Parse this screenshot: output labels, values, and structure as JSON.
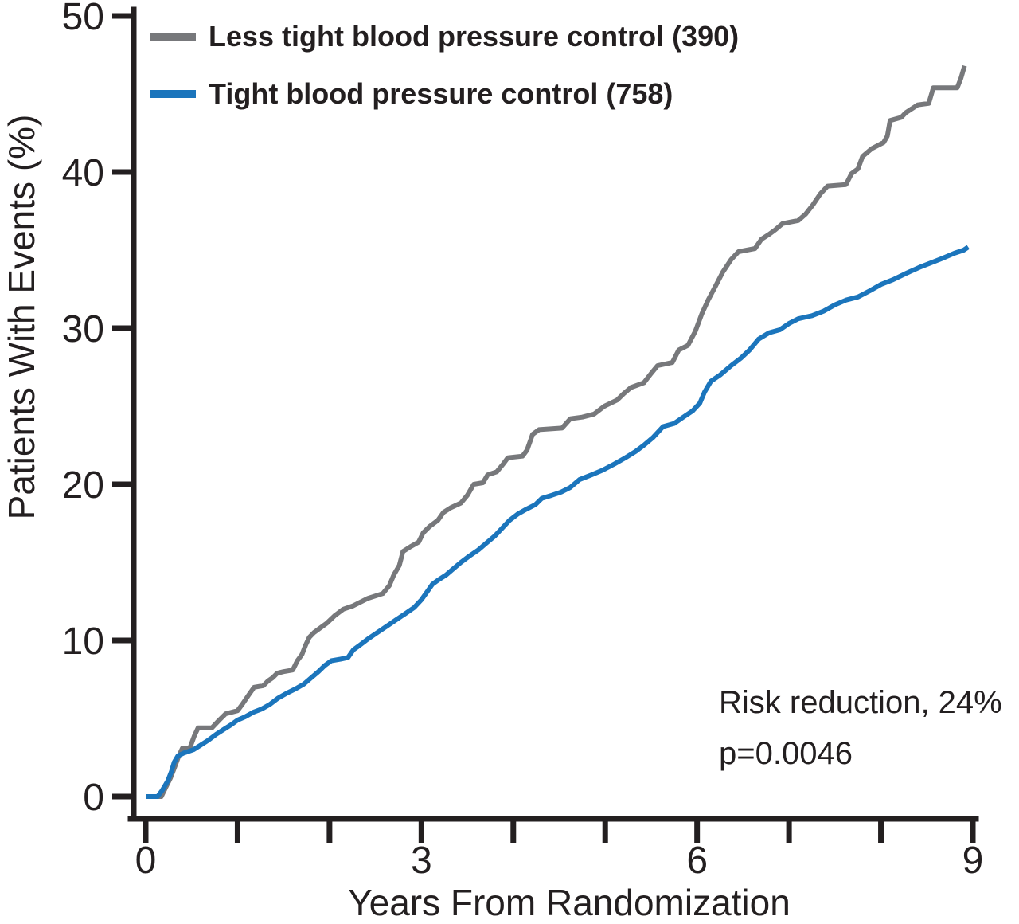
{
  "chart_data": {
    "type": "line",
    "title": "",
    "xlabel": "Years From Randomization",
    "ylabel": "Patients With Events (%)",
    "xlim": [
      0,
      9
    ],
    "ylim": [
      0,
      50
    ],
    "grid": false,
    "legend_position": "top-left",
    "axis_color": "#231F20",
    "x_ticks": [
      0,
      1,
      2,
      3,
      4,
      5,
      6,
      7,
      8,
      9
    ],
    "x_labeled_ticks": [
      0,
      3,
      6,
      9
    ],
    "y_ticks": [
      0,
      10,
      20,
      30,
      40,
      50
    ],
    "annotations": [
      "Risk reduction, 24%",
      "p=0.0046"
    ],
    "series": [
      {
        "id": "less-tight",
        "name": "Less tight blood pressure control (390)",
        "color": "#77787B",
        "points": [
          [
            0.0,
            0
          ],
          [
            0.17,
            0
          ],
          [
            0.22,
            0.6
          ],
          [
            0.27,
            1.2
          ],
          [
            0.31,
            1.8
          ],
          [
            0.36,
            2.6
          ],
          [
            0.4,
            3.1
          ],
          [
            0.48,
            3.1
          ],
          [
            0.53,
            3.9
          ],
          [
            0.57,
            4.4
          ],
          [
            0.72,
            4.4
          ],
          [
            0.8,
            4.9
          ],
          [
            0.87,
            5.3
          ],
          [
            1.0,
            5.5
          ],
          [
            1.05,
            5.9
          ],
          [
            1.12,
            6.5
          ],
          [
            1.18,
            7.0
          ],
          [
            1.28,
            7.1
          ],
          [
            1.33,
            7.4
          ],
          [
            1.38,
            7.6
          ],
          [
            1.43,
            7.9
          ],
          [
            1.5,
            8.0
          ],
          [
            1.6,
            8.1
          ],
          [
            1.65,
            8.7
          ],
          [
            1.7,
            9.1
          ],
          [
            1.74,
            9.7
          ],
          [
            1.78,
            10.2
          ],
          [
            1.83,
            10.5
          ],
          [
            1.9,
            10.8
          ],
          [
            1.97,
            11.1
          ],
          [
            2.06,
            11.6
          ],
          [
            2.15,
            12.0
          ],
          [
            2.25,
            12.2
          ],
          [
            2.42,
            12.7
          ],
          [
            2.58,
            13.0
          ],
          [
            2.65,
            13.5
          ],
          [
            2.7,
            14.2
          ],
          [
            2.76,
            14.8
          ],
          [
            2.8,
            15.7
          ],
          [
            2.88,
            16.0
          ],
          [
            2.97,
            16.3
          ],
          [
            3.02,
            16.9
          ],
          [
            3.09,
            17.3
          ],
          [
            3.18,
            17.7
          ],
          [
            3.24,
            18.2
          ],
          [
            3.32,
            18.5
          ],
          [
            3.43,
            18.8
          ],
          [
            3.5,
            19.3
          ],
          [
            3.57,
            20.0
          ],
          [
            3.67,
            20.1
          ],
          [
            3.72,
            20.6
          ],
          [
            3.82,
            20.8
          ],
          [
            3.89,
            21.3
          ],
          [
            3.94,
            21.7
          ],
          [
            4.1,
            21.8
          ],
          [
            4.15,
            22.2
          ],
          [
            4.21,
            23.2
          ],
          [
            4.28,
            23.5
          ],
          [
            4.53,
            23.6
          ],
          [
            4.62,
            24.2
          ],
          [
            4.75,
            24.3
          ],
          [
            4.88,
            24.5
          ],
          [
            4.99,
            25.0
          ],
          [
            5.13,
            25.4
          ],
          [
            5.2,
            25.8
          ],
          [
            5.28,
            26.2
          ],
          [
            5.42,
            26.5
          ],
          [
            5.5,
            27.1
          ],
          [
            5.57,
            27.6
          ],
          [
            5.73,
            27.8
          ],
          [
            5.8,
            28.6
          ],
          [
            5.9,
            28.9
          ],
          [
            5.98,
            29.8
          ],
          [
            6.05,
            30.9
          ],
          [
            6.12,
            31.8
          ],
          [
            6.2,
            32.7
          ],
          [
            6.28,
            33.6
          ],
          [
            6.37,
            34.4
          ],
          [
            6.45,
            34.9
          ],
          [
            6.63,
            35.1
          ],
          [
            6.7,
            35.7
          ],
          [
            6.78,
            36.0
          ],
          [
            6.85,
            36.3
          ],
          [
            6.93,
            36.7
          ],
          [
            7.1,
            36.9
          ],
          [
            7.18,
            37.3
          ],
          [
            7.26,
            37.9
          ],
          [
            7.34,
            38.6
          ],
          [
            7.42,
            39.1
          ],
          [
            7.62,
            39.2
          ],
          [
            7.68,
            39.9
          ],
          [
            7.75,
            40.2
          ],
          [
            7.8,
            41.0
          ],
          [
            7.9,
            41.5
          ],
          [
            8.03,
            41.9
          ],
          [
            8.07,
            42.3
          ],
          [
            8.1,
            43.3
          ],
          [
            8.22,
            43.5
          ],
          [
            8.27,
            43.8
          ],
          [
            8.4,
            44.3
          ],
          [
            8.52,
            44.4
          ],
          [
            8.57,
            45.4
          ],
          [
            8.83,
            45.4
          ],
          [
            8.87,
            46.0
          ],
          [
            8.91,
            46.8
          ]
        ]
      },
      {
        "id": "tight",
        "name": "Tight blood pressure control (758)",
        "color": "#1B75BC",
        "points": [
          [
            0.0,
            0
          ],
          [
            0.13,
            0
          ],
          [
            0.18,
            0.4
          ],
          [
            0.24,
            1.0
          ],
          [
            0.28,
            1.6
          ],
          [
            0.31,
            2.2
          ],
          [
            0.35,
            2.6
          ],
          [
            0.42,
            2.8
          ],
          [
            0.52,
            3.0
          ],
          [
            0.6,
            3.3
          ],
          [
            0.68,
            3.6
          ],
          [
            0.77,
            4.0
          ],
          [
            0.85,
            4.3
          ],
          [
            0.93,
            4.6
          ],
          [
            1.0,
            4.9
          ],
          [
            1.08,
            5.1
          ],
          [
            1.17,
            5.4
          ],
          [
            1.26,
            5.6
          ],
          [
            1.35,
            5.9
          ],
          [
            1.44,
            6.3
          ],
          [
            1.53,
            6.6
          ],
          [
            1.63,
            6.9
          ],
          [
            1.72,
            7.2
          ],
          [
            1.8,
            7.6
          ],
          [
            1.88,
            8.0
          ],
          [
            1.95,
            8.4
          ],
          [
            2.02,
            8.7
          ],
          [
            2.12,
            8.8
          ],
          [
            2.2,
            8.9
          ],
          [
            2.26,
            9.4
          ],
          [
            2.33,
            9.7
          ],
          [
            2.42,
            10.1
          ],
          [
            2.52,
            10.5
          ],
          [
            2.62,
            10.9
          ],
          [
            2.72,
            11.3
          ],
          [
            2.82,
            11.7
          ],
          [
            2.92,
            12.1
          ],
          [
            3.0,
            12.6
          ],
          [
            3.06,
            13.1
          ],
          [
            3.12,
            13.6
          ],
          [
            3.19,
            13.9
          ],
          [
            3.27,
            14.2
          ],
          [
            3.35,
            14.6
          ],
          [
            3.43,
            15.0
          ],
          [
            3.52,
            15.4
          ],
          [
            3.62,
            15.8
          ],
          [
            3.7,
            16.2
          ],
          [
            3.8,
            16.7
          ],
          [
            3.88,
            17.2
          ],
          [
            3.96,
            17.7
          ],
          [
            4.05,
            18.1
          ],
          [
            4.14,
            18.4
          ],
          [
            4.24,
            18.7
          ],
          [
            4.31,
            19.1
          ],
          [
            4.42,
            19.3
          ],
          [
            4.52,
            19.5
          ],
          [
            4.62,
            19.8
          ],
          [
            4.72,
            20.3
          ],
          [
            4.85,
            20.6
          ],
          [
            4.97,
            20.9
          ],
          [
            5.1,
            21.3
          ],
          [
            5.22,
            21.7
          ],
          [
            5.33,
            22.1
          ],
          [
            5.42,
            22.5
          ],
          [
            5.52,
            23.0
          ],
          [
            5.63,
            23.7
          ],
          [
            5.75,
            23.9
          ],
          [
            5.85,
            24.3
          ],
          [
            5.95,
            24.7
          ],
          [
            6.03,
            25.2
          ],
          [
            6.08,
            25.9
          ],
          [
            6.15,
            26.6
          ],
          [
            6.25,
            27.0
          ],
          [
            6.37,
            27.6
          ],
          [
            6.48,
            28.1
          ],
          [
            6.57,
            28.6
          ],
          [
            6.67,
            29.3
          ],
          [
            6.78,
            29.7
          ],
          [
            6.9,
            29.9
          ],
          [
            7.0,
            30.3
          ],
          [
            7.1,
            30.6
          ],
          [
            7.25,
            30.8
          ],
          [
            7.38,
            31.1
          ],
          [
            7.5,
            31.5
          ],
          [
            7.62,
            31.8
          ],
          [
            7.75,
            32.0
          ],
          [
            7.88,
            32.4
          ],
          [
            8.0,
            32.8
          ],
          [
            8.13,
            33.1
          ],
          [
            8.27,
            33.5
          ],
          [
            8.42,
            33.9
          ],
          [
            8.55,
            34.2
          ],
          [
            8.68,
            34.5
          ],
          [
            8.8,
            34.8
          ],
          [
            8.9,
            35.0
          ],
          [
            8.95,
            35.2
          ]
        ]
      }
    ]
  }
}
